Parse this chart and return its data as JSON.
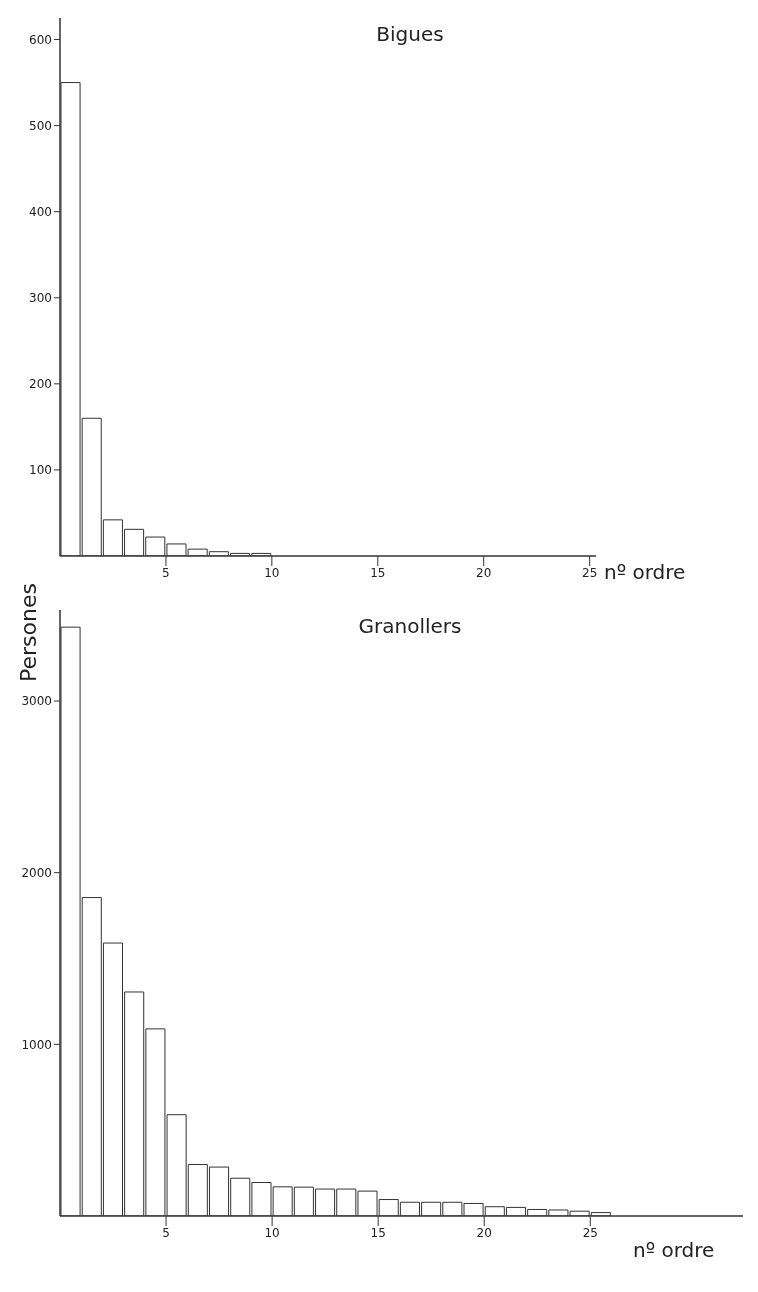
{
  "chart_data": [
    {
      "type": "histogram",
      "title": "Bigues",
      "xlabel": "nº ordre",
      "bins": [
        0,
        1,
        2,
        3,
        4,
        5,
        6,
        7,
        8,
        9,
        10
      ],
      "values": [
        550,
        160,
        42,
        31,
        22,
        14,
        8,
        5,
        3,
        3
      ],
      "color": "#ffffff",
      "xlim": [
        0,
        25.3
      ],
      "xticks": [
        5,
        10,
        15,
        20,
        25
      ],
      "ylim": [
        0,
        625
      ],
      "yticks": [
        100,
        200,
        300,
        400,
        500,
        600
      ],
      "grid": false,
      "legend": false
    },
    {
      "type": "histogram",
      "title": "Granollers",
      "xlabel": "nº ordre",
      "ylabel": "Persones",
      "bins": [
        0,
        1,
        2,
        3,
        4,
        5,
        6,
        7,
        8,
        9,
        10,
        11,
        12,
        13,
        14,
        15,
        16,
        17,
        18,
        19,
        20,
        21,
        22,
        23,
        24,
        25,
        26
      ],
      "values": [
        3430,
        1855,
        1590,
        1305,
        1090,
        590,
        300,
        285,
        220,
        195,
        170,
        168,
        157,
        157,
        145,
        96,
        80,
        80,
        80,
        73,
        54,
        50,
        38,
        35,
        28,
        20
      ],
      "color": "#ffffff",
      "xlim": [
        0,
        32.2
      ],
      "xticks": [
        5,
        10,
        15,
        20,
        25
      ],
      "ylim": [
        0,
        3530
      ],
      "yticks": [
        1000,
        2000,
        3000
      ],
      "grid": false,
      "legend": false
    }
  ]
}
